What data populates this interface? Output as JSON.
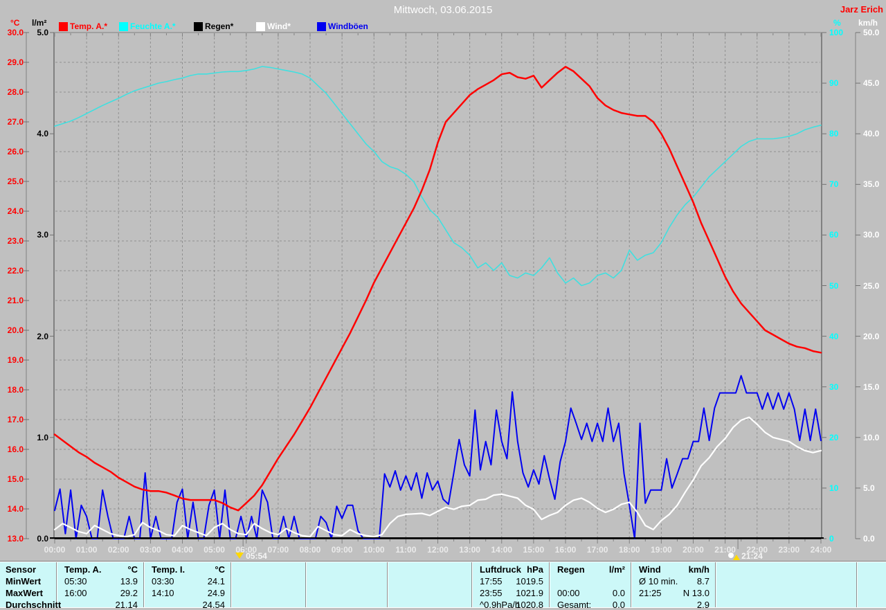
{
  "window": {
    "title": "Mittwoch, 03.06.2015",
    "station": "Jarz Erich"
  },
  "legend": {
    "items": [
      {
        "key": "temp",
        "label": "Temp. A.*",
        "color": "#ff0000"
      },
      {
        "key": "humidity",
        "label": "Feuchte A.*",
        "color": "#00ffff"
      },
      {
        "key": "rain",
        "label": "Regen*",
        "color": "#000000"
      },
      {
        "key": "wind",
        "label": "Wind*",
        "color": "#ffffff"
      },
      {
        "key": "gusts",
        "label": "Windböen",
        "color": "#0000f0"
      }
    ]
  },
  "axes": {
    "temp": {
      "unit": "°C",
      "color": "#ff0000",
      "min": 13,
      "max": 30,
      "tick_labels": [
        "30.0",
        "29.0",
        "28.0",
        "27.0",
        "26.0",
        "25.0",
        "24.0",
        "23.0",
        "22.0",
        "21.0",
        "20.0",
        "19.0",
        "18.0",
        "17.0",
        "16.0",
        "15.0",
        "14.0",
        "13.0"
      ]
    },
    "rain": {
      "unit": "l/m²",
      "color": "#000000",
      "min": 0,
      "max": 5,
      "tick_labels": [
        "5.0",
        "4.0",
        "3.0",
        "2.0",
        "1.0",
        "0.0"
      ]
    },
    "humidity": {
      "unit": "%",
      "color": "#00ffff",
      "min": 0,
      "max": 100,
      "tick_labels": [
        "100",
        "90",
        "80",
        "70",
        "60",
        "50",
        "40",
        "30",
        "20",
        "10",
        "0"
      ]
    },
    "wind": {
      "unit": "km/h",
      "color": "#ffffff",
      "min": 0,
      "max": 50,
      "tick_labels": [
        "50.0",
        "45.0",
        "40.0",
        "35.0",
        "30.0",
        "25.0",
        "20.0",
        "15.0",
        "10.0",
        "5.0",
        "0.0"
      ]
    }
  },
  "x_axis": {
    "tick_labels": [
      "00:00",
      "01:00",
      "02:00",
      "03:00",
      "04:00",
      "05:00",
      "06:00",
      "07:00",
      "08:00",
      "09:00",
      "10:00",
      "11:00",
      "12:00",
      "13:00",
      "14:00",
      "15:00",
      "16:00",
      "17:00",
      "18:00",
      "19:00",
      "20:00",
      "21:00",
      "22:00",
      "23:00",
      "24:00"
    ]
  },
  "markers": {
    "sunrise": {
      "time": "05:54",
      "icon": "sunrise-icon"
    },
    "sunset": {
      "time": "21:24",
      "icon": "sunset-icon"
    }
  },
  "chart_data": {
    "type": "line",
    "title": "Mittwoch, 03.06.2015",
    "x_unit": "time of day (hh:mm)",
    "x_range_hours": [
      0,
      24
    ],
    "grid": "dashed, 1 °C horizontal steps, hourly vertical steps",
    "legend_position": "top",
    "series": [
      {
        "key": "rain",
        "name": "Regen",
        "unit": "l/m²",
        "color": "#000000",
        "axis_min": 0,
        "axis_max": 5,
        "interval_min": 720,
        "values": [
          0.0,
          0.0,
          0.0
        ]
      },
      {
        "key": "humidity",
        "name": "Feuchte A.",
        "unit": "%",
        "color": "#3fe0e0",
        "axis_min": 0,
        "axis_max": 100,
        "interval_min": 15,
        "values": [
          81.5,
          82.0,
          82.5,
          83.2,
          84.0,
          84.8,
          85.6,
          86.3,
          87.0,
          87.8,
          88.5,
          89.0,
          89.5,
          90.0,
          90.3,
          90.7,
          91.0,
          91.5,
          91.8,
          91.8,
          92.0,
          92.2,
          92.3,
          92.3,
          92.5,
          92.8,
          93.3,
          93.1,
          92.8,
          92.5,
          92.2,
          91.8,
          91.0,
          89.5,
          88.0,
          86.0,
          84.0,
          82.0,
          80.0,
          78.0,
          76.5,
          74.5,
          73.5,
          73.0,
          72.0,
          70.5,
          67.5,
          65.0,
          63.5,
          61.0,
          58.5,
          57.5,
          56.0,
          53.5,
          54.5,
          53.0,
          54.5,
          52.0,
          51.5,
          52.5,
          52.0,
          53.5,
          55.5,
          52.5,
          50.5,
          51.5,
          50.0,
          50.5,
          52.0,
          52.5,
          51.5,
          53.0,
          57.0,
          55.0,
          56.0,
          56.5,
          58.5,
          61.5,
          64.0,
          66.0,
          67.5,
          69.5,
          71.5,
          73.0,
          74.5,
          76.0,
          77.5,
          78.5,
          79.0,
          79.0,
          79.0,
          79.2,
          79.5,
          80.0,
          80.8,
          81.3,
          81.7
        ]
      },
      {
        "key": "gusts",
        "name": "Windböen",
        "unit": "km/h",
        "color": "#0000f0",
        "axis_min": 0,
        "axis_max": 50,
        "interval_min": 10,
        "values": [
          2.8,
          4.9,
          0.5,
          4.8,
          0.0,
          3.3,
          2.2,
          0.0,
          0.0,
          4.8,
          2.2,
          0.0,
          0.0,
          0.0,
          2.2,
          0.0,
          0.0,
          6.5,
          0.0,
          2.2,
          0.0,
          0.0,
          0.0,
          3.6,
          4.9,
          0.0,
          3.6,
          0.0,
          0.0,
          3.3,
          4.8,
          0.0,
          4.8,
          0.0,
          0.0,
          2.2,
          0.0,
          2.2,
          0.0,
          4.8,
          3.6,
          0.0,
          0.0,
          2.2,
          0.0,
          2.2,
          0.0,
          0.0,
          0.0,
          0.0,
          2.2,
          1.6,
          0.0,
          3.2,
          2.0,
          3.3,
          3.3,
          0.8,
          0.0,
          0.0,
          0.0,
          0.0,
          6.4,
          5.1,
          6.7,
          4.8,
          6.2,
          4.8,
          6.5,
          4.0,
          6.5,
          4.8,
          5.7,
          3.9,
          3.4,
          6.5,
          9.8,
          7.3,
          6.2,
          12.7,
          6.8,
          9.6,
          7.3,
          12.7,
          9.6,
          7.9,
          14.5,
          9.6,
          6.5,
          5.1,
          6.8,
          5.4,
          8.2,
          5.9,
          3.9,
          7.6,
          9.6,
          12.9,
          11.4,
          9.8,
          11.4,
          9.6,
          11.4,
          9.6,
          12.9,
          9.6,
          11.4,
          6.4,
          3.3,
          0.0,
          11.4,
          3.5,
          4.8,
          4.8,
          4.8,
          7.9,
          5.0,
          6.4,
          7.9,
          7.9,
          9.6,
          9.6,
          12.9,
          9.7,
          12.9,
          14.4,
          14.4,
          14.4,
          14.4,
          16.1,
          14.4,
          14.4,
          14.4,
          12.8,
          14.4,
          12.8,
          14.4,
          12.8,
          14.4,
          12.8,
          9.7,
          12.8,
          9.7,
          12.8,
          9.7
        ]
      },
      {
        "key": "wind",
        "name": "Wind",
        "unit": "km/h",
        "color": "#ffffff",
        "axis_min": 0,
        "axis_max": 50,
        "interval_min": 15,
        "values": [
          0.9,
          1.5,
          1.1,
          0.7,
          0.5,
          1.3,
          0.9,
          0.5,
          0.3,
          0.2,
          0.4,
          1.6,
          1.1,
          0.8,
          0.4,
          0.3,
          1.3,
          0.9,
          0.6,
          0.3,
          1.1,
          1.5,
          0.9,
          0.5,
          0.4,
          1.5,
          1.0,
          0.6,
          0.4,
          1.0,
          0.6,
          0.3,
          0.2,
          1.2,
          0.8,
          0.4,
          0.3,
          0.9,
          0.5,
          0.3,
          0.2,
          0.4,
          1.5,
          2.2,
          2.4,
          2.45,
          2.5,
          2.3,
          2.7,
          3.1,
          2.9,
          3.2,
          3.3,
          3.8,
          3.9,
          4.3,
          4.4,
          4.2,
          4.0,
          3.3,
          2.9,
          1.9,
          2.3,
          2.6,
          3.3,
          3.8,
          4.0,
          3.6,
          3.0,
          2.6,
          2.9,
          3.4,
          3.6,
          2.6,
          1.3,
          0.9,
          1.8,
          2.4,
          3.3,
          4.6,
          5.8,
          7.2,
          8.0,
          9.1,
          9.9,
          11.0,
          11.7,
          12.0,
          11.3,
          10.5,
          10.0,
          9.8,
          9.6,
          9.1,
          8.7,
          8.5,
          8.7
        ]
      },
      {
        "key": "temp",
        "name": "Temp. A.",
        "unit": "°C",
        "color": "#ff0000",
        "axis_min": 13,
        "axis_max": 30,
        "interval_min": 15,
        "values": [
          16.5,
          16.3,
          16.1,
          15.9,
          15.75,
          15.55,
          15.4,
          15.25,
          15.05,
          14.9,
          14.75,
          14.65,
          14.6,
          14.6,
          14.55,
          14.45,
          14.35,
          14.3,
          14.3,
          14.3,
          14.3,
          14.2,
          14.05,
          13.95,
          14.2,
          14.45,
          14.8,
          15.25,
          15.7,
          16.1,
          16.5,
          16.95,
          17.4,
          17.9,
          18.4,
          18.9,
          19.4,
          19.9,
          20.45,
          21.0,
          21.6,
          22.1,
          22.6,
          23.1,
          23.6,
          24.1,
          24.7,
          25.4,
          26.3,
          27.0,
          27.3,
          27.6,
          27.9,
          28.1,
          28.25,
          28.4,
          28.6,
          28.65,
          28.5,
          28.45,
          28.55,
          28.15,
          28.4,
          28.65,
          28.85,
          28.7,
          28.45,
          28.2,
          27.8,
          27.55,
          27.4,
          27.3,
          27.25,
          27.2,
          27.2,
          27.0,
          26.6,
          26.1,
          25.5,
          24.9,
          24.3,
          23.6,
          23.0,
          22.4,
          21.8,
          21.3,
          20.9,
          20.6,
          20.3,
          20.0,
          19.85,
          19.7,
          19.55,
          19.45,
          19.4,
          19.3,
          19.25
        ]
      }
    ]
  },
  "table": {
    "row_labels": [
      "Sensor",
      "MinWert",
      "MaxWert",
      "Durchschnitt"
    ],
    "columns": [
      {
        "name": "Temp. A.",
        "unit": "°C",
        "rows": [
          [
            "05:30",
            "13.9"
          ],
          [
            "16:00",
            "29.2"
          ],
          [
            "",
            "21.14"
          ]
        ]
      },
      {
        "name": "Temp. I.",
        "unit": "°C",
        "rows": [
          [
            "03:30",
            "24.1"
          ],
          [
            "14:10",
            "24.9"
          ],
          [
            "",
            "24.54"
          ]
        ]
      },
      {
        "name": "",
        "unit": "",
        "rows": [
          [
            "",
            ""
          ],
          [
            "",
            ""
          ],
          [
            "",
            ""
          ]
        ]
      },
      {
        "name": "",
        "unit": "",
        "rows": [
          [
            "",
            ""
          ],
          [
            "",
            ""
          ],
          [
            "",
            ""
          ]
        ]
      },
      {
        "name": "",
        "unit": "",
        "rows": [
          [
            "",
            ""
          ],
          [
            "",
            ""
          ],
          [
            "",
            ""
          ]
        ]
      },
      {
        "name": "Luftdruck",
        "unit": "hPa",
        "rows": [
          [
            "17:55",
            "1019.5"
          ],
          [
            "23:55",
            "1021.9"
          ],
          [
            "^0.9hPa/h",
            "1020.8"
          ]
        ]
      },
      {
        "name": "Regen",
        "unit": "l/m²",
        "rows": [
          [
            "",
            ""
          ],
          [
            "00:00",
            "0.0"
          ],
          [
            "Gesamt:",
            "0.0"
          ]
        ]
      },
      {
        "name": "Wind",
        "unit": "km/h",
        "rows": [
          [
            "Ø 10 min.",
            "8.7"
          ],
          [
            "21:25",
            "N 13.0"
          ],
          [
            "",
            "2.9"
          ]
        ]
      },
      {
        "name": "",
        "unit": "",
        "rows": [
          [
            "",
            ""
          ],
          [
            "",
            ""
          ],
          [
            "",
            ""
          ]
        ]
      },
      {
        "name": "",
        "unit": "",
        "rows": [
          [
            "",
            ""
          ],
          [
            "",
            ""
          ],
          [
            "",
            ""
          ]
        ]
      }
    ]
  }
}
